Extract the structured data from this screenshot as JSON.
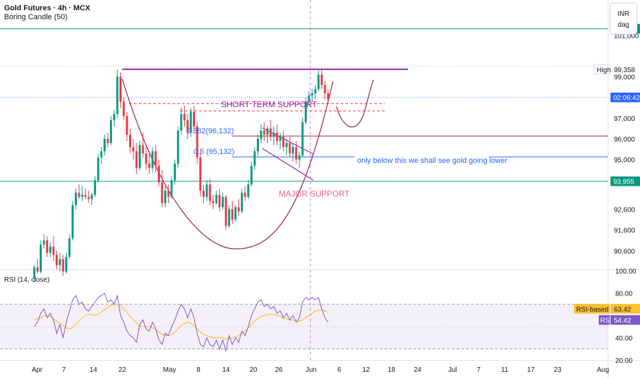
{
  "header": {
    "title": "Gold Futures · 4h · MCX",
    "indicator": "Boring Candle (50)",
    "currency": "INR",
    "currency_sub": "dag"
  },
  "rsi_header": {
    "label": "RSI (14, close)"
  },
  "colors": {
    "bull": "#089981",
    "bear": "#f23645",
    "purple": "#8e24aa",
    "blue": "#2962ff",
    "green_line": "#089981",
    "maroon": "#9c1c4b",
    "pink": "#f06292",
    "rsi": "#7e57c2",
    "rsi_ma": "#fbc02d",
    "band": "#7e57c2"
  },
  "chart_data": [
    {
      "type": "candlestick",
      "title": "Gold Futures · 4h · MCX",
      "x_tick_labels": [
        "Apr",
        "7",
        "14",
        "22",
        "May",
        "8",
        "14",
        "20",
        "26",
        "Jun",
        "6",
        "12",
        "18",
        "24",
        "Jul",
        "7",
        "11",
        "17",
        "23",
        "Aug"
      ],
      "y_tick_labels": [
        {
          "label": "101,000",
          "value": 101000
        },
        {
          "label": "99,000",
          "value": 99000
        },
        {
          "label": "98,000",
          "value": 98000
        },
        {
          "label": "97,000",
          "value": 97000
        },
        {
          "label": "96,000",
          "value": 96000
        },
        {
          "label": "95,000",
          "value": 95000
        },
        {
          "label": "92,600",
          "value": 92600
        },
        {
          "label": "91,600",
          "value": 91600
        },
        {
          "label": "90,600",
          "value": 90600
        }
      ],
      "ylim": [
        89700,
        102700
      ],
      "price_tags": [
        {
          "label": "101,317",
          "value": 101317,
          "style": "green"
        },
        {
          "label": "02:06:42",
          "value": 98000,
          "style": "blue"
        },
        {
          "label": "93,955",
          "value": 93955,
          "style": "green"
        }
      ],
      "high_marker": {
        "label": "High",
        "value_label": "99,358",
        "value": 99358
      },
      "annotations": [
        {
          "text": "SHORT TERM SUPPORT",
          "color": "purple"
        },
        {
          "text": "0.382(96,132)",
          "color": "blue"
        },
        {
          "text": "0.5 (95,132)",
          "color": "blue"
        },
        {
          "text": "only below this we shall see gold going lower",
          "color": "blue"
        },
        {
          "text": "MAJOR SUPPORT",
          "color": "pink"
        }
      ],
      "levels": [
        {
          "value": 101317,
          "style": "green"
        },
        {
          "value": 99358,
          "style": "purple resistance"
        },
        {
          "value": 98000,
          "style": "blue dotted current"
        },
        {
          "value": 97700,
          "style": "short term support dashed"
        },
        {
          "value": 97350,
          "style": "short term support dashed"
        },
        {
          "value": 96132,
          "style": "0.382 level"
        },
        {
          "value": 95132,
          "style": "0.5 level"
        },
        {
          "value": 93955,
          "style": "green major support"
        }
      ],
      "candles": [
        [
          0,
          89300,
          89900,
          89100,
          89800
        ],
        [
          1,
          89800,
          90200,
          89500,
          89600
        ],
        [
          2,
          89600,
          91100,
          89500,
          90900
        ],
        [
          3,
          90900,
          91400,
          90700,
          91100
        ],
        [
          4,
          91100,
          91300,
          90300,
          90500
        ],
        [
          5,
          90500,
          91000,
          90300,
          90800
        ],
        [
          6,
          90800,
          91300,
          90100,
          90400
        ],
        [
          7,
          90400,
          90600,
          89700,
          89900
        ],
        [
          8,
          89900,
          90500,
          89600,
          90200
        ],
        [
          9,
          90200,
          90400,
          89400,
          89600
        ],
        [
          10,
          89600,
          90500,
          89500,
          90300
        ],
        [
          11,
          90300,
          91400,
          90200,
          91200
        ],
        [
          12,
          91200,
          93000,
          91100,
          92800
        ],
        [
          13,
          92800,
          93600,
          92600,
          93400
        ],
        [
          14,
          93400,
          93800,
          93100,
          93200
        ],
        [
          15,
          93200,
          93700,
          93000,
          93300
        ],
        [
          16,
          93300,
          93600,
          93100,
          93200
        ],
        [
          17,
          93200,
          93500,
          92900,
          93100
        ],
        [
          18,
          93100,
          93400,
          92800,
          93300
        ],
        [
          19,
          93300,
          94200,
          93200,
          94000
        ],
        [
          20,
          94000,
          95300,
          93900,
          95100
        ],
        [
          21,
          95100,
          95600,
          94800,
          95400
        ],
        [
          22,
          95400,
          96200,
          95200,
          96000
        ],
        [
          23,
          96000,
          96300,
          95600,
          95800
        ],
        [
          24,
          95800,
          97100,
          95700,
          96900
        ],
        [
          25,
          96900,
          97400,
          96600,
          97200
        ],
        [
          26,
          97200,
          99358,
          97000,
          99000
        ],
        [
          27,
          99000,
          99200,
          97500,
          97800
        ],
        [
          28,
          97800,
          98000,
          96900,
          97100
        ],
        [
          29,
          97100,
          97300,
          95900,
          96200
        ],
        [
          30,
          96200,
          96500,
          95300,
          95600
        ],
        [
          31,
          95600,
          96000,
          95000,
          95400
        ],
        [
          32,
          95400,
          95800,
          94300,
          94600
        ],
        [
          33,
          94600,
          95900,
          94500,
          95700
        ],
        [
          34,
          95700,
          96300,
          95100,
          95300
        ],
        [
          35,
          95300,
          95700,
          94500,
          94800
        ],
        [
          36,
          94800,
          95400,
          94300,
          94600
        ],
        [
          37,
          94600,
          95600,
          94400,
          95400
        ],
        [
          38,
          95400,
          95700,
          94400,
          94700
        ],
        [
          39,
          94700,
          95000,
          93700,
          93900
        ],
        [
          40,
          93900,
          94500,
          92700,
          92900
        ],
        [
          41,
          92900,
          93700,
          92700,
          93500
        ],
        [
          42,
          93500,
          93800,
          92900,
          93200
        ],
        [
          43,
          93200,
          94200,
          93100,
          94000
        ],
        [
          44,
          94000,
          95000,
          93800,
          94800
        ],
        [
          45,
          94800,
          96600,
          94600,
          96400
        ],
        [
          46,
          96400,
          97500,
          96200,
          97200
        ],
        [
          47,
          97200,
          97600,
          96600,
          96900
        ],
        [
          48,
          96900,
          97200,
          96000,
          96300
        ],
        [
          49,
          96300,
          97500,
          96100,
          97300
        ],
        [
          50,
          97300,
          97600,
          96300,
          96600
        ],
        [
          51,
          96600,
          96800,
          94800,
          95100
        ],
        [
          52,
          95100,
          95400,
          93200,
          93500
        ],
        [
          53,
          93500,
          93800,
          92900,
          93200
        ],
        [
          54,
          93200,
          94000,
          93000,
          93800
        ],
        [
          55,
          93800,
          94100,
          92800,
          93000
        ],
        [
          56,
          93000,
          93300,
          92600,
          92900
        ],
        [
          57,
          92900,
          93500,
          92800,
          93300
        ],
        [
          58,
          93300,
          93600,
          92500,
          92700
        ],
        [
          59,
          92700,
          93400,
          92600,
          93200
        ],
        [
          60,
          93200,
          93300,
          91600,
          91800
        ],
        [
          61,
          91800,
          92800,
          91700,
          92600
        ],
        [
          62,
          92600,
          93000,
          91900,
          92100
        ],
        [
          63,
          92100,
          92800,
          92000,
          92700
        ],
        [
          64,
          92700,
          93100,
          92300,
          92500
        ],
        [
          65,
          92500,
          93600,
          92400,
          93400
        ],
        [
          66,
          93400,
          93700,
          93000,
          93200
        ],
        [
          67,
          93200,
          94000,
          93100,
          93800
        ],
        [
          68,
          93800,
          94900,
          93700,
          94700
        ],
        [
          69,
          94700,
          95600,
          94500,
          95400
        ],
        [
          70,
          95400,
          96200,
          95200,
          96000
        ],
        [
          71,
          96000,
          96700,
          95800,
          96400
        ],
        [
          72,
          96400,
          96800,
          95900,
          96200
        ],
        [
          73,
          96200,
          96600,
          95800,
          96500
        ],
        [
          74,
          96500,
          96900,
          95900,
          96100
        ],
        [
          75,
          96100,
          96600,
          95700,
          96300
        ],
        [
          76,
          96300,
          96700,
          95700,
          95900
        ],
        [
          77,
          95900,
          96300,
          95500,
          96100
        ],
        [
          78,
          96100,
          96400,
          95400,
          95600
        ],
        [
          79,
          95600,
          96000,
          95200,
          95800
        ],
        [
          80,
          95800,
          96100,
          95100,
          95300
        ],
        [
          81,
          95300,
          95800,
          94900,
          95600
        ],
        [
          82,
          95600,
          95900,
          94800,
          95000
        ],
        [
          83,
          95000,
          95400,
          94600,
          95200
        ],
        [
          84,
          95200,
          97000,
          95100,
          96800
        ],
        [
          85,
          96800,
          98000,
          96700,
          97800
        ],
        [
          86,
          97800,
          98300,
          97600,
          98100
        ],
        [
          87,
          98100,
          98400,
          97800,
          98200
        ],
        [
          88,
          98200,
          98600,
          97900,
          98400
        ],
        [
          89,
          98400,
          99300,
          98300,
          99100
        ],
        [
          90,
          99100,
          99300,
          98400,
          98600
        ],
        [
          91,
          98600,
          98800,
          97900,
          98200
        ],
        [
          92,
          98200,
          98400,
          97700,
          97900
        ]
      ]
    },
    {
      "type": "line",
      "title": "RSI (14, close)",
      "y_tick_labels": [
        "100.00",
        "80.00",
        "40.00",
        "20.00"
      ],
      "ylim": [
        20,
        100
      ],
      "band": [
        30,
        70
      ],
      "series": [
        {
          "name": "RSI-based MA",
          "value_label": "63.42",
          "values": [
            56,
            57,
            58,
            60,
            60,
            59,
            57,
            55,
            53,
            51,
            49,
            48,
            49,
            52,
            55,
            58,
            60,
            61,
            61,
            60,
            61,
            63,
            65,
            67,
            69,
            70,
            70,
            69,
            66,
            63,
            59,
            56,
            53,
            51,
            50,
            50,
            50,
            49,
            47,
            45,
            43,
            42,
            42,
            43,
            45,
            48,
            51,
            53,
            54,
            53,
            51,
            48,
            45,
            43,
            42,
            41,
            40,
            40,
            40,
            40,
            39,
            39,
            40,
            41,
            42,
            44,
            46,
            49,
            52,
            55,
            57,
            59,
            60,
            61,
            61,
            61,
            60,
            59,
            58,
            57,
            56,
            56,
            55,
            55,
            56,
            58,
            60,
            62,
            64,
            65,
            65,
            64,
            63
          ]
        },
        {
          "name": "RSI",
          "value_label": "54.42",
          "values": [
            50,
            54,
            62,
            66,
            58,
            62,
            56,
            44,
            52,
            40,
            54,
            64,
            74,
            78,
            70,
            72,
            66,
            64,
            68,
            72,
            76,
            78,
            80,
            72,
            74,
            70,
            78,
            60,
            54,
            46,
            42,
            40,
            36,
            52,
            56,
            48,
            46,
            54,
            48,
            38,
            34,
            44,
            42,
            50,
            56,
            64,
            70,
            66,
            58,
            66,
            58,
            44,
            34,
            32,
            40,
            34,
            32,
            38,
            30,
            38,
            28,
            42,
            34,
            40,
            36,
            46,
            42,
            50,
            60,
            66,
            72,
            74,
            68,
            70,
            66,
            68,
            62,
            64,
            58,
            62,
            56,
            60,
            54,
            58,
            72,
            76,
            74,
            76,
            74,
            76,
            66,
            58,
            54
          ]
        }
      ]
    }
  ]
}
